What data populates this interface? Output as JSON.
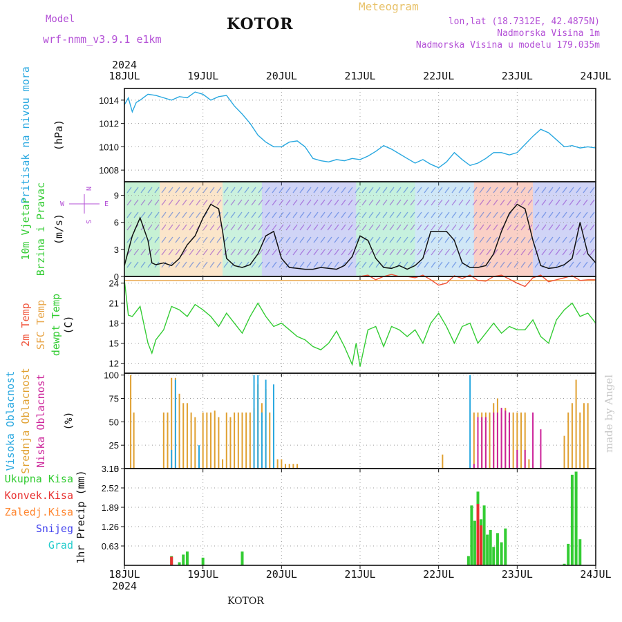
{
  "header": {
    "model_label": "Model",
    "model_name": "wrf-nmm_v3.9.1  e1km",
    "location": "KOTOR",
    "chart_type": "Meteogram",
    "coords": "lon,lat (18.7312E, 42.4875N)",
    "elevation": "Nadmorska Visina 1m",
    "model_elevation": "Nadmorska Visina u modelu 179.035m"
  },
  "footer": {
    "location": "KOTOR"
  },
  "watermark": "made by Angel",
  "colors": {
    "pressure": "#29a8e0",
    "wind_speed": "#111111",
    "temp_2m": "#f0533a",
    "temp_sfc": "#e8a64a",
    "dewpoint": "#33cc33",
    "cloud_high": "#29a8e0",
    "cloud_mid": "#e0a030",
    "cloud_low": "#cc2299",
    "precip_total": "#33cc33",
    "precip_conv": "#e83030",
    "precip_strat": "#ff8833",
    "snow": "#4444ee",
    "hail": "#22cccc",
    "grid": "#999999"
  },
  "chart_data": {
    "type": "line",
    "x_year": "2024",
    "x_ticks": [
      "18JUL",
      "19JUL",
      "20JUL",
      "21JUL",
      "22JUL",
      "23JUL",
      "24JUL"
    ],
    "panels": [
      {
        "id": "pressure",
        "labels": [
          "Pritisak na nivou mora"
        ],
        "unit": "(hPa)",
        "ylim": [
          1007,
          1015
        ],
        "yticks": [
          1008,
          1010,
          1012,
          1014
        ],
        "series": [
          {
            "key": "pressure",
            "x": [
              0,
              0.05,
              0.1,
              0.15,
              0.2,
              0.3,
              0.4,
              0.5,
              0.6,
              0.7,
              0.8,
              0.9,
              1.0,
              1.1,
              1.2,
              1.3,
              1.4,
              1.5,
              1.6,
              1.7,
              1.8,
              1.9,
              2.0,
              2.1,
              2.2,
              2.3,
              2.4,
              2.5,
              2.6,
              2.7,
              2.8,
              2.9,
              3.0,
              3.1,
              3.2,
              3.3,
              3.4,
              3.5,
              3.6,
              3.7,
              3.8,
              3.9,
              4.0,
              4.1,
              4.2,
              4.3,
              4.4,
              4.5,
              4.6,
              4.7,
              4.8,
              4.9,
              5.0,
              5.1,
              5.2,
              5.3,
              5.4,
              5.5,
              5.6,
              5.7,
              5.8,
              5.9,
              6.0
            ],
            "y": [
              1013.6,
              1014.2,
              1013.0,
              1013.8,
              1014.0,
              1014.5,
              1014.4,
              1014.2,
              1014.0,
              1014.3,
              1014.2,
              1014.7,
              1014.5,
              1014.0,
              1014.3,
              1014.4,
              1013.5,
              1012.8,
              1012.0,
              1011.0,
              1010.4,
              1010.0,
              1010.0,
              1010.4,
              1010.5,
              1010.0,
              1009.0,
              1008.8,
              1008.7,
              1008.9,
              1008.8,
              1009.0,
              1008.9,
              1009.2,
              1009.6,
              1010.1,
              1009.8,
              1009.4,
              1009.0,
              1008.6,
              1008.9,
              1008.5,
              1008.2,
              1008.7,
              1009.5,
              1008.9,
              1008.4,
              1008.6,
              1009.0,
              1009.5,
              1009.5,
              1009.3,
              1009.5,
              1010.2,
              1010.9,
              1011.5,
              1011.2,
              1010.6,
              1010.0,
              1010.1,
              1009.9,
              1010.0,
              1009.9
            ]
          }
        ]
      },
      {
        "id": "wind",
        "labels": [
          "10m Vjetar",
          "Brzina i Pravac"
        ],
        "unit": "(m/s)",
        "ylim": [
          0,
          10.5
        ],
        "yticks": [
          0,
          3,
          6,
          9
        ],
        "compass": [
          "N",
          "W",
          "E",
          "S"
        ],
        "series": [
          {
            "key": "wind_speed",
            "x": [
              0,
              0.1,
              0.2,
              0.3,
              0.35,
              0.4,
              0.5,
              0.6,
              0.7,
              0.8,
              0.9,
              1.0,
              1.1,
              1.2,
              1.25,
              1.3,
              1.4,
              1.5,
              1.6,
              1.7,
              1.8,
              1.9,
              2.0,
              2.1,
              2.2,
              2.3,
              2.4,
              2.5,
              2.6,
              2.7,
              2.8,
              2.9,
              3.0,
              3.1,
              3.2,
              3.3,
              3.4,
              3.5,
              3.6,
              3.7,
              3.8,
              3.9,
              4.0,
              4.1,
              4.2,
              4.3,
              4.4,
              4.5,
              4.6,
              4.7,
              4.8,
              4.9,
              5.0,
              5.1,
              5.2,
              5.3,
              5.4,
              5.5,
              5.6,
              5.7,
              5.8,
              5.9,
              6.0
            ],
            "y": [
              1.2,
              4.5,
              6.5,
              4.0,
              1.5,
              1.3,
              1.5,
              1.2,
              2.0,
              3.5,
              4.5,
              6.5,
              8.0,
              7.5,
              5.0,
              2.0,
              1.2,
              1.0,
              1.3,
              2.5,
              4.5,
              5.0,
              2.0,
              1.0,
              0.9,
              0.8,
              0.8,
              1.0,
              0.9,
              0.8,
              1.2,
              2.2,
              4.5,
              4.0,
              2.0,
              1.0,
              0.9,
              1.2,
              0.8,
              1.2,
              2.0,
              5.0,
              5.0,
              5.0,
              4.0,
              1.5,
              1.0,
              1.0,
              1.2,
              2.5,
              5.0,
              7.0,
              8.0,
              7.5,
              4.0,
              1.2,
              0.9,
              1.0,
              1.3,
              2.0,
              6.0,
              2.5,
              1.5
            ]
          }
        ]
      },
      {
        "id": "temperature",
        "labels": [
          "2m Temp",
          "SFC Temp",
          "dewpt Temp"
        ],
        "unit": "(C)",
        "ylim": [
          10.5,
          25
        ],
        "yticks": [
          12,
          15,
          18,
          21,
          24
        ],
        "series": [
          {
            "key": "temp_sfc",
            "x": [
              0,
              6
            ],
            "y": [
              24.4,
              24.4
            ]
          },
          {
            "key": "temp_2m",
            "x": [
              3.0,
              3.1,
              3.2,
              3.3,
              3.4,
              3.5,
              3.6,
              3.7,
              3.8,
              3.9,
              4.0,
              4.1,
              4.2,
              4.3,
              4.4,
              4.5,
              4.6,
              4.7,
              4.8,
              4.9,
              5.0,
              5.1,
              5.2,
              5.3,
              5.4,
              5.5,
              5.6,
              5.7,
              5.8,
              5.9,
              6.0
            ],
            "y": [
              25.0,
              25.2,
              24.5,
              25.0,
              25.3,
              25.0,
              25.0,
              24.8,
              25.2,
              24.5,
              23.7,
              24.0,
              25.1,
              24.7,
              25.2,
              24.4,
              24.3,
              25.0,
              25.2,
              24.6,
              24.0,
              23.5,
              24.8,
              25.2,
              24.2,
              24.5,
              24.8,
              25.1,
              24.4,
              24.5,
              24.5
            ]
          },
          {
            "key": "dewpoint",
            "x": [
              0,
              0.05,
              0.1,
              0.2,
              0.3,
              0.35,
              0.4,
              0.5,
              0.6,
              0.7,
              0.8,
              0.9,
              1.0,
              1.1,
              1.2,
              1.3,
              1.4,
              1.5,
              1.6,
              1.7,
              1.8,
              1.9,
              2.0,
              2.1,
              2.2,
              2.3,
              2.4,
              2.5,
              2.6,
              2.7,
              2.8,
              2.9,
              2.95,
              3.0,
              3.1,
              3.2,
              3.3,
              3.4,
              3.5,
              3.6,
              3.7,
              3.8,
              3.9,
              4.0,
              4.1,
              4.2,
              4.3,
              4.4,
              4.5,
              4.6,
              4.7,
              4.8,
              4.9,
              5.0,
              5.1,
              5.2,
              5.3,
              5.4,
              5.5,
              5.6,
              5.7,
              5.8,
              5.9,
              6.0
            ],
            "y": [
              24.5,
              19.2,
              19.0,
              20.5,
              15.0,
              13.5,
              15.5,
              17.0,
              20.5,
              20.0,
              19.0,
              20.8,
              20.0,
              19.0,
              17.5,
              19.5,
              18.0,
              16.5,
              19.0,
              21.0,
              19.0,
              17.5,
              18.0,
              17.0,
              16.0,
              15.5,
              14.5,
              14.0,
              15.0,
              16.8,
              14.5,
              11.8,
              15.0,
              11.5,
              17.0,
              17.5,
              14.5,
              17.5,
              17.0,
              16.0,
              17.0,
              15.0,
              18.0,
              19.5,
              17.5,
              15.0,
              17.5,
              18.0,
              15.0,
              16.5,
              18.0,
              16.5,
              17.5,
              17.0,
              17.0,
              18.5,
              16.0,
              15.0,
              18.5,
              20.0,
              21.0,
              19.0,
              19.5,
              18.0
            ]
          }
        ]
      },
      {
        "id": "clouds",
        "labels": [
          "Visoka Oblacnost",
          "Srednja Oblacnost",
          "Niska Oblacnost"
        ],
        "unit": "(%)",
        "ylim": [
          0,
          102
        ],
        "yticks": [
          0,
          25,
          50,
          75,
          100
        ],
        "series": [
          {
            "key": "cloud_mid",
            "x": [
              0.08,
              0.12,
              0.5,
              0.55,
              0.6,
              0.65,
              0.7,
              0.75,
              0.8,
              0.85,
              0.9,
              0.95,
              1.0,
              1.05,
              1.1,
              1.15,
              1.2,
              1.25,
              1.3,
              1.35,
              1.4,
              1.45,
              1.5,
              1.55,
              1.6,
              1.65,
              1.7,
              1.75,
              1.8,
              1.85,
              1.9,
              1.95,
              2.0,
              2.05,
              2.1,
              2.15,
              2.2,
              4.05,
              4.45,
              4.5,
              4.55,
              4.6,
              4.65,
              4.7,
              4.75,
              4.8,
              4.85,
              4.9,
              4.95,
              5.0,
              5.05,
              5.1,
              5.15,
              5.2,
              5.6,
              5.65,
              5.7,
              5.75,
              5.8,
              5.85,
              5.9
            ],
            "y": [
              100,
              60,
              60,
              60,
              97,
              97,
              80,
              70,
              70,
              60,
              55,
              5,
              60,
              60,
              60,
              62,
              55,
              10,
              60,
              55,
              60,
              60,
              60,
              60,
              60,
              65,
              90,
              70,
              85,
              60,
              60,
              10,
              10,
              5,
              5,
              5,
              5,
              15,
              60,
              60,
              60,
              60,
              60,
              70,
              75,
              60,
              65,
              60,
              60,
              60,
              60,
              60,
              10,
              5,
              35,
              60,
              70,
              95,
              60,
              70,
              70
            ]
          },
          {
            "key": "cloud_high",
            "x": [
              0.6,
              0.65,
              0.95,
              1.65,
              1.7,
              1.75,
              1.8,
              1.9,
              4.4
            ],
            "y": [
              20,
              95,
              25,
              100,
              100,
              60,
              95,
              90,
              100
            ]
          },
          {
            "key": "cloud_low",
            "x": [
              4.45,
              4.5,
              4.55,
              4.6,
              4.7,
              4.75,
              4.8,
              4.85,
              4.9,
              5.0,
              5.1,
              5.2,
              5.3
            ],
            "y": [
              5,
              55,
              55,
              55,
              60,
              60,
              65,
              62,
              60,
              20,
              20,
              60,
              42
            ]
          }
        ]
      },
      {
        "id": "precip",
        "labels": [
          "Ukupna Kisa",
          "Konvek.Kisa",
          "Zaledj.Kisa",
          "Snijeg",
          "Grad"
        ],
        "unit": "1hr Precip (mm)",
        "ylim": [
          0,
          3.15
        ],
        "yticks": [
          0.63,
          1.26,
          1.89,
          2.52,
          3.15
        ],
        "series": [
          {
            "key": "precip_total",
            "x": [
              0.6,
              0.7,
              0.75,
              0.8,
              1.0,
              1.5,
              4.38,
              4.42,
              4.46,
              4.5,
              4.54,
              4.58,
              4.62,
              4.66,
              4.7,
              4.75,
              4.8,
              4.85,
              5.6,
              5.65,
              5.7,
              5.75,
              5.8
            ],
            "y": [
              0.3,
              0.1,
              0.35,
              0.45,
              0.25,
              0.45,
              0.3,
              1.95,
              1.45,
              2.4,
              1.5,
              1.95,
              1.0,
              1.15,
              0.6,
              1.05,
              0.75,
              1.2,
              0.05,
              0.7,
              2.95,
              3.05,
              0.85
            ]
          },
          {
            "key": "precip_conv",
            "x": [
              0.6,
              4.5,
              4.54
            ],
            "y": [
              0.28,
              2.0,
              1.3
            ]
          }
        ]
      }
    ]
  }
}
